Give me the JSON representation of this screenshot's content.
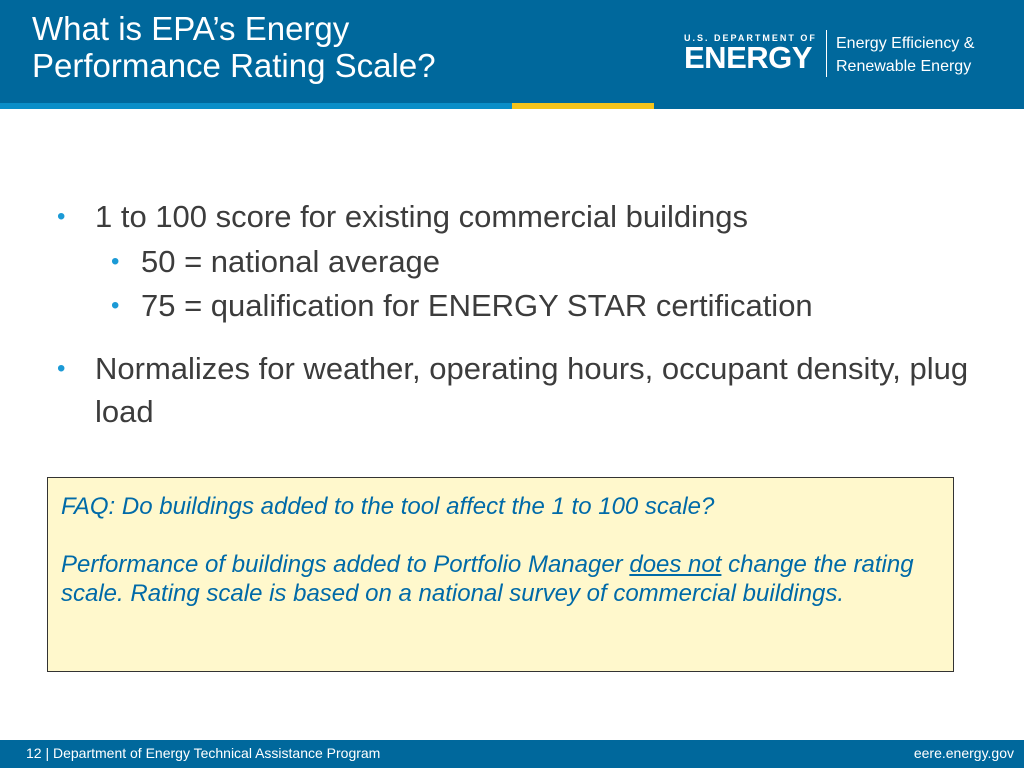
{
  "header": {
    "title_line1": "What is EPA’s Energy",
    "title_line2": "Performance Rating Scale?",
    "logo": {
      "dept": "U.S. DEPARTMENT OF",
      "energy": "ENERGY",
      "office_line1": "Energy Efficiency &",
      "office_line2": "Renewable Energy"
    }
  },
  "bullets": {
    "b1": "1 to 100 score for existing commercial buildings",
    "s1": "50 = national average",
    "s2": "75 = qualification for ENERGY STAR certification",
    "b2": "Normalizes for weather, operating hours, occupant density, plug load"
  },
  "faq": {
    "question": "FAQ: Do buildings added to the tool affect the 1 to 100 scale?",
    "answer_pre": "Performance of buildings added to Portfolio Manager ",
    "answer_emph": "does not",
    "answer_post": " change the rating scale. Rating scale is based on a national survey of commercial buildings."
  },
  "footer": {
    "left": "12 | Department of Energy Technical Assistance Program",
    "right": "eere.energy.gov"
  },
  "colors": {
    "brand_blue": "#00689c",
    "accent_yellow": "#f5c31b",
    "bullet_blue": "#1b9ad6",
    "faq_background": "#fff8cc"
  }
}
